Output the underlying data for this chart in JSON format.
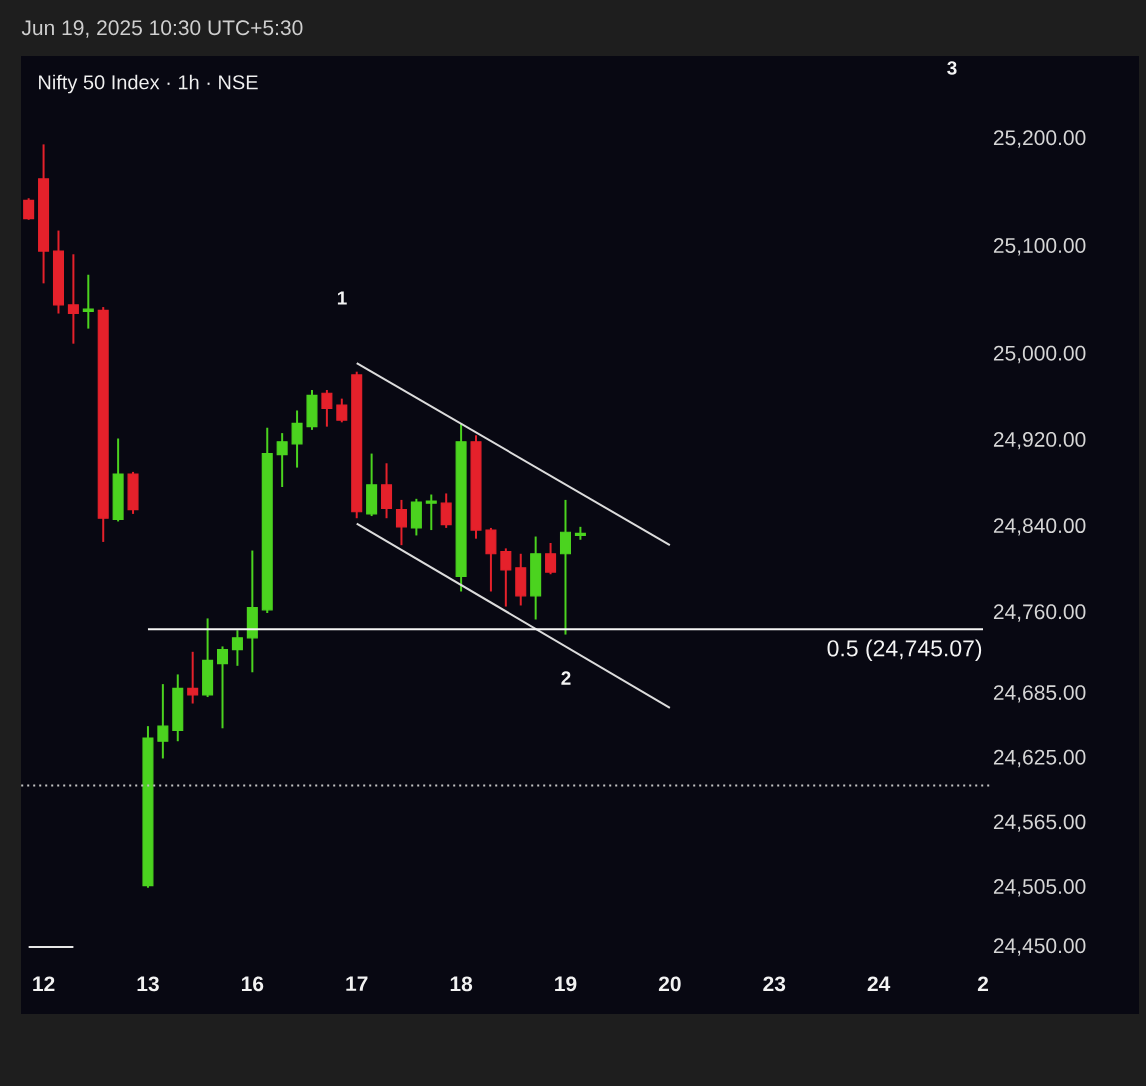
{
  "chart_data": {
    "type": "candlestick",
    "title": "Nifty 50 Index · 1h · NSE",
    "annotations": [
      "Jun 19, 2025 10:30 UTC+5:30",
      "1",
      "2",
      "3"
    ],
    "categories": [
      null,
      "12",
      null,
      null,
      null,
      null,
      null,
      null,
      "13",
      null,
      null,
      null,
      null,
      null,
      null,
      "16",
      null,
      null,
      null,
      null,
      null,
      null,
      "17",
      null,
      null,
      null,
      null,
      null,
      null,
      "18",
      null,
      null,
      null,
      null,
      null,
      null,
      "19",
      null,
      null,
      null,
      null,
      null,
      null,
      "20",
      null,
      null,
      null,
      null,
      null,
      null,
      "23",
      null,
      null,
      null,
      null,
      null,
      null,
      "24",
      null,
      null,
      null,
      null,
      null,
      null,
      "2"
    ],
    "ohlc": [
      [
        25143,
        25145,
        25125,
        25126
      ],
      [
        25163,
        25195,
        25066,
        25096
      ],
      [
        25096,
        25115,
        25038,
        25046
      ],
      [
        25046,
        25093,
        25010,
        25038
      ],
      [
        25040,
        25074,
        25024,
        25042
      ],
      [
        25041,
        25044,
        24826,
        24848
      ],
      [
        24847,
        24922,
        24845,
        24889
      ],
      [
        24889,
        24891,
        24852,
        24856
      ],
      [
        24507,
        24655,
        24505,
        24644
      ],
      [
        24641,
        24694,
        24625,
        24655
      ],
      [
        24651,
        24703,
        24641,
        24690
      ],
      [
        24690,
        24724,
        24676,
        24684
      ],
      [
        24684,
        24755,
        24682,
        24716
      ],
      [
        24713,
        24729,
        24653,
        24726
      ],
      [
        24726,
        24744,
        24711,
        24737
      ],
      [
        24737,
        24818,
        24705,
        24765
      ],
      [
        24763,
        24932,
        24760,
        24908
      ],
      [
        24907,
        24927,
        24877,
        24919
      ],
      [
        24917,
        24948,
        24895,
        24936
      ],
      [
        24933,
        24967,
        24930,
        24962
      ],
      [
        24964,
        24967,
        24933,
        24950
      ],
      [
        24953,
        24959,
        24937,
        24939
      ],
      [
        24981,
        24984,
        24848,
        24854
      ],
      [
        24852,
        24908,
        24850,
        24879
      ],
      [
        24879,
        24899,
        24848,
        24857
      ],
      [
        24856,
        24865,
        24823,
        24840
      ],
      [
        24839,
        24866,
        24832,
        24863
      ],
      [
        24862,
        24870,
        24837,
        24864
      ],
      [
        24862,
        24871,
        24839,
        24842
      ],
      [
        24794,
        24936,
        24780,
        24919
      ],
      [
        24919,
        24925,
        24829,
        24837
      ],
      [
        24837,
        24839,
        24780,
        24815
      ],
      [
        24817,
        24820,
        24766,
        24800
      ],
      [
        24802,
        24815,
        24767,
        24776
      ],
      [
        24776,
        24831,
        24754,
        24815
      ],
      [
        24815,
        24825,
        24796,
        24798
      ],
      [
        24815,
        24865,
        24740,
        24835
      ],
      [
        24832,
        24840,
        24828,
        24834
      ],
      null,
      null,
      null,
      null,
      null,
      null,
      null,
      null,
      null,
      null,
      null,
      null,
      null,
      null,
      null,
      null,
      null,
      null,
      null,
      null,
      null,
      null,
      null,
      null,
      null,
      null,
      null
    ],
    "colors": [
      "#e5212b",
      "#e5212b",
      "#e5212b",
      "#e5212b",
      "#4bd31f",
      "#e5212b",
      "#4bd31f",
      "#e5212b",
      "#4bd31f",
      "#4bd31f",
      "#4bd31f",
      "#e5212b",
      "#4bd31f",
      "#4bd31f",
      "#4bd31f",
      "#4bd31f",
      "#4bd31f",
      "#4bd31f",
      "#4bd31f",
      "#4bd31f",
      "#e5212b",
      "#e5212b",
      "#e5212b",
      "#4bd31f",
      "#e5212b",
      "#e5212b",
      "#4bd31f",
      "#4bd31f",
      "#e5212b",
      "#4bd31f",
      "#e5212b",
      "#e5212b",
      "#e5212b",
      "#e5212b",
      "#4bd31f",
      "#e5212b",
      "#4bd31f",
      "#4bd31f",
      null,
      null,
      null,
      null,
      null,
      null,
      null,
      null,
      null,
      null,
      null,
      null,
      null,
      null,
      null,
      null,
      null,
      null,
      null,
      null,
      null,
      null,
      null,
      null,
      null,
      null,
      null
    ],
    "series": [
      {
        "type": "line",
        "x": [
          "17",
          "20"
        ],
        "values": [
          24992,
          24823
        ],
        "color": "#dcdcdc"
      },
      {
        "type": "line",
        "x": [
          "17",
          "20"
        ],
        "values": [
          24843,
          24672
        ],
        "color": "#dcdcdc"
      },
      {
        "type": "line",
        "name": "0.5 (24,745.07)",
        "x": [
          "13",
          "2"
        ],
        "values": [
          24745,
          24745
        ],
        "color": "#f5f5f5"
      },
      {
        "type": "line",
        "values": [
          24450,
          24450,
          24450,
          24450,
          null,
          null,
          null,
          null,
          null,
          null,
          null,
          null,
          null,
          null,
          null,
          null,
          null,
          null,
          null,
          null,
          null,
          null,
          null,
          null,
          null,
          null,
          null,
          null,
          null,
          null,
          null,
          null,
          null,
          null,
          null,
          null,
          null,
          null,
          null,
          null,
          null,
          null,
          null,
          null,
          null,
          null,
          null,
          null,
          null,
          null,
          null,
          null,
          null,
          null,
          null,
          null,
          null,
          null,
          null,
          null,
          null,
          null,
          null,
          null,
          null
        ],
        "color": "#e6e6e6"
      }
    ],
    "ref_lines": [
      {
        "axis": "y",
        "value": 24600,
        "color": "#c4c4c4",
        "line_style": "dotted"
      }
    ],
    "ylim": [
      24450,
      25200
    ],
    "yticks": [
      {
        "value": 25200,
        "label": "25,200.00"
      },
      {
        "value": 25100,
        "label": "25,100.00"
      },
      {
        "value": 25000,
        "label": "25,000.00"
      },
      {
        "value": 24920,
        "label": "24,920.00"
      },
      {
        "value": 24840,
        "label": "24,840.00"
      },
      {
        "value": 24760,
        "label": "24,760.00"
      },
      {
        "value": 24685,
        "label": "24,685.00"
      },
      {
        "value": 24625,
        "label": "24,625.00"
      },
      {
        "value": 24565,
        "label": "24,565.00"
      },
      {
        "value": 24505,
        "label": "24,505.00"
      },
      {
        "value": 24450,
        "label": "24,450.00"
      }
    ]
  }
}
